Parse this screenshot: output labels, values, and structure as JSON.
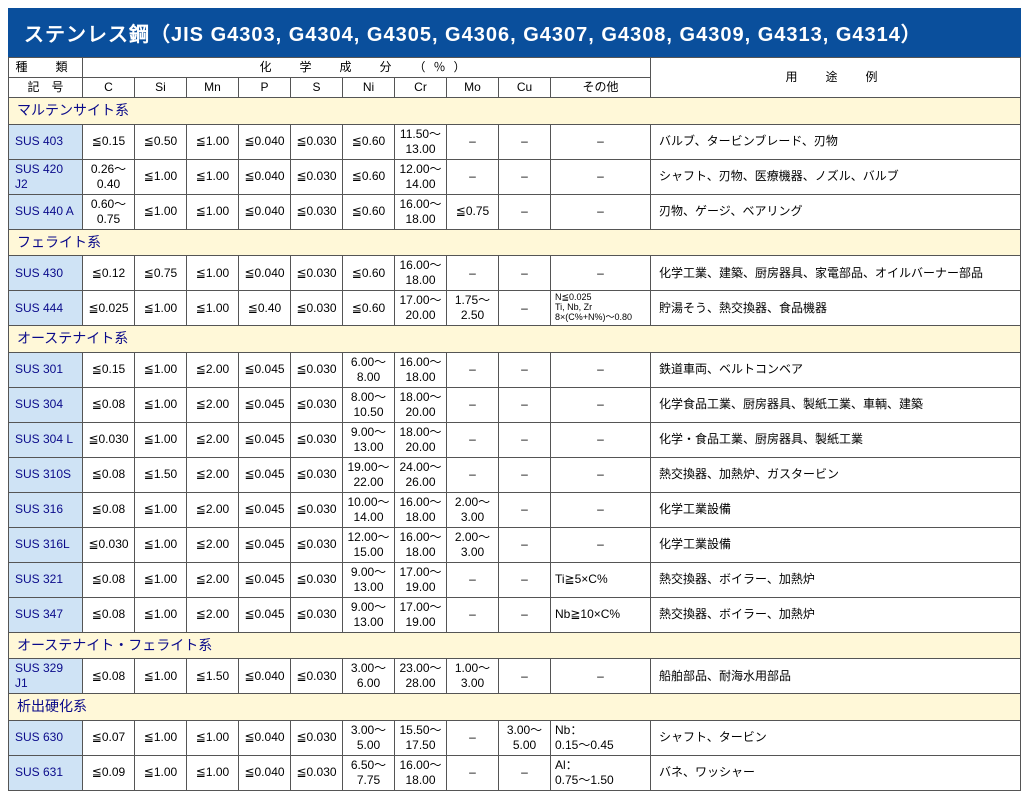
{
  "title": "ステンレス鋼（JIS G4303, G4304, G4305, G4306, G4307, G4308, G4309, G4313, G4314）",
  "colors": {
    "titleBg": "#0a4f9c",
    "titleFg": "#ffffff",
    "sectionBg": "#fff8d8",
    "nameBg": "#cfe3f5",
    "border": "#555555",
    "text": "#000000",
    "accent": "#0a0a8a",
    "pageBg": "#ffffff"
  },
  "headers": {
    "type": "種　類",
    "symbol": "記　号",
    "chem": "化　学　成　分　（％）",
    "use": "用　途　例",
    "cols": [
      "C",
      "Si",
      "Mn",
      "P",
      "S",
      "Ni",
      "Cr",
      "Mo",
      "Cu",
      "その他"
    ]
  },
  "sections": [
    {
      "name": "マルテンサイト系",
      "rows": [
        {
          "sym": "SUS 403",
          "c": [
            "≦0.15",
            "≦0.50",
            "≦1.00",
            "≦0.040",
            "≦0.030",
            "≦0.60",
            "11.50～\n13.00",
            "–",
            "–",
            "–"
          ],
          "use": "バルブ、タービンブレード、刃物"
        },
        {
          "sym": "SUS 420 J2",
          "c": [
            "0.26～\n0.40",
            "≦1.00",
            "≦1.00",
            "≦0.040",
            "≦0.030",
            "≦0.60",
            "12.00～\n14.00",
            "–",
            "–",
            "–"
          ],
          "use": "シャフト、刃物、医療機器、ノズル、バルブ"
        },
        {
          "sym": "SUS 440 A",
          "c": [
            "0.60～\n0.75",
            "≦1.00",
            "≦1.00",
            "≦0.040",
            "≦0.030",
            "≦0.60",
            "16.00～\n18.00",
            "≦0.75",
            "–",
            "–"
          ],
          "use": "刃物、ゲージ、ベアリング"
        }
      ]
    },
    {
      "name": "フェライト系",
      "rows": [
        {
          "sym": "SUS 430",
          "c": [
            "≦0.12",
            "≦0.75",
            "≦1.00",
            "≦0.040",
            "≦0.030",
            "≦0.60",
            "16.00～\n18.00",
            "–",
            "–",
            "–"
          ],
          "use": "化学工業、建築、厨房器具、家電部品、オイルバーナー部品"
        },
        {
          "sym": "SUS 444",
          "c": [
            "≦0.025",
            "≦1.00",
            "≦1.00",
            "≦0.40",
            "≦0.030",
            "≦0.60",
            "17.00～\n20.00",
            "1.75～\n2.50",
            "–",
            {
              "small": "N≦0.025\nTi, Nb, Zr\n8×(C%+N%)～0.80"
            }
          ],
          "use": "貯湯そう、熱交換器、食品機器"
        }
      ]
    },
    {
      "name": "オーステナイト系",
      "rows": [
        {
          "sym": "SUS 301",
          "c": [
            "≦0.15",
            "≦1.00",
            "≦2.00",
            "≦0.045",
            "≦0.030",
            "6.00～\n8.00",
            "16.00～\n18.00",
            "–",
            "–",
            "–"
          ],
          "use": "鉄道車両、ベルトコンベア"
        },
        {
          "sym": "SUS 304",
          "c": [
            "≦0.08",
            "≦1.00",
            "≦2.00",
            "≦0.045",
            "≦0.030",
            "8.00～\n10.50",
            "18.00～\n20.00",
            "–",
            "–",
            "–"
          ],
          "use": "化学食品工業、厨房器具、製紙工業、車輌、建築"
        },
        {
          "sym": "SUS 304 L",
          "c": [
            "≦0.030",
            "≦1.00",
            "≦2.00",
            "≦0.045",
            "≦0.030",
            "9.00～\n13.00",
            "18.00～\n20.00",
            "–",
            "–",
            "–"
          ],
          "use": "化学・食品工業、厨房器具、製紙工業"
        },
        {
          "sym": "SUS 310S",
          "c": [
            "≦0.08",
            "≦1.50",
            "≦2.00",
            "≦0.045",
            "≦0.030",
            "19.00～\n22.00",
            "24.00～\n26.00",
            "–",
            "–",
            "–"
          ],
          "use": "熱交換器、加熱炉、ガスタービン"
        },
        {
          "sym": "SUS 316",
          "c": [
            "≦0.08",
            "≦1.00",
            "≦2.00",
            "≦0.045",
            "≦0.030",
            "10.00～\n14.00",
            "16.00～\n18.00",
            "2.00～\n3.00",
            "–",
            "–"
          ],
          "use": "化学工業設備"
        },
        {
          "sym": "SUS 316L",
          "c": [
            "≦0.030",
            "≦1.00",
            "≦2.00",
            "≦0.045",
            "≦0.030",
            "12.00～\n15.00",
            "16.00～\n18.00",
            "2.00～\n3.00",
            "–",
            "–"
          ],
          "use": "化学工業設備"
        },
        {
          "sym": "SUS 321",
          "c": [
            "≦0.08",
            "≦1.00",
            "≦2.00",
            "≦0.045",
            "≦0.030",
            "9.00～\n13.00",
            "17.00～\n19.00",
            "–",
            "–",
            "Ti≧5×C%"
          ],
          "use": "熱交換器、ボイラー、加熱炉"
        },
        {
          "sym": "SUS 347",
          "c": [
            "≦0.08",
            "≦1.00",
            "≦2.00",
            "≦0.045",
            "≦0.030",
            "9.00～\n13.00",
            "17.00～\n19.00",
            "–",
            "–",
            "Nb≧10×C%"
          ],
          "use": "熱交換器、ボイラー、加熱炉"
        }
      ]
    },
    {
      "name": "オーステナイト・フェライト系",
      "rows": [
        {
          "sym": "SUS 329 J1",
          "c": [
            "≦0.08",
            "≦1.00",
            "≦1.50",
            "≦0.040",
            "≦0.030",
            "3.00～\n6.00",
            "23.00～\n28.00",
            "1.00～\n3.00",
            "–",
            "–"
          ],
          "use": "船舶部品、耐海水用部品"
        }
      ]
    },
    {
      "name": "析出硬化系",
      "rows": [
        {
          "sym": "SUS 630",
          "c": [
            "≦0.07",
            "≦1.00",
            "≦1.00",
            "≦0.040",
            "≦0.030",
            "3.00～\n5.00",
            "15.50～\n17.50",
            "–",
            "3.00～\n5.00",
            "Nb：\n0.15～0.45"
          ],
          "use": "シャフト、タービン"
        },
        {
          "sym": "SUS 631",
          "c": [
            "≦0.09",
            "≦1.00",
            "≦1.00",
            "≦0.040",
            "≦0.030",
            "6.50～\n7.75",
            "16.00～\n18.00",
            "–",
            "–",
            "Al：\n0.75～1.50"
          ],
          "use": "バネ、ワッシャー"
        }
      ]
    }
  ]
}
